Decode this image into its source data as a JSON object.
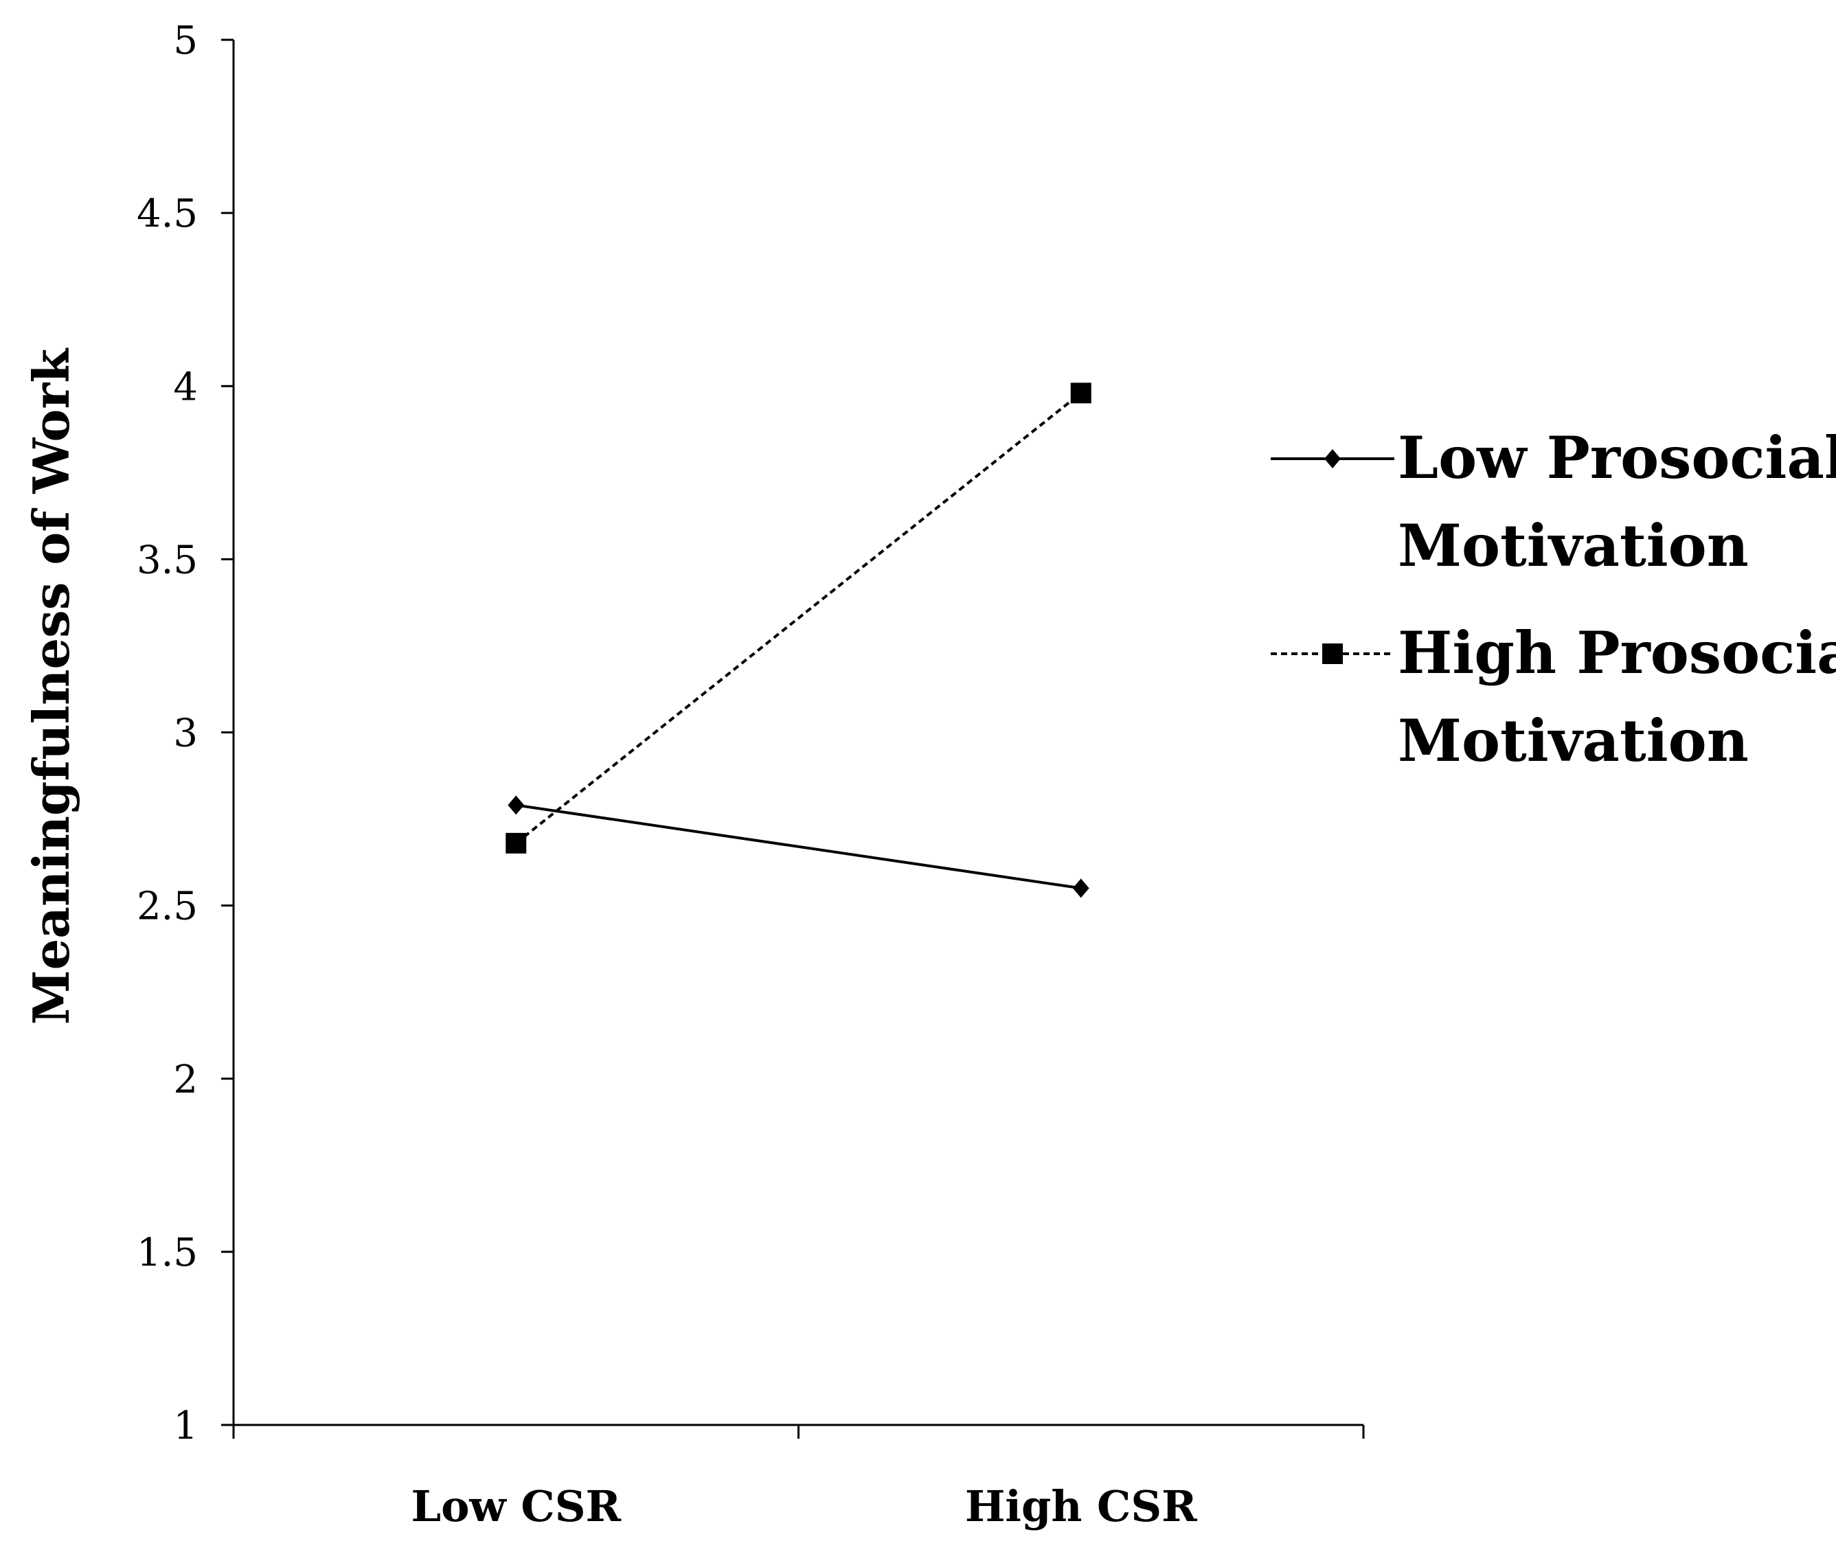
{
  "chart_data": {
    "type": "line",
    "title": "",
    "xlabel": "",
    "ylabel": "Meaningfulness  of Work",
    "categories": [
      "Low CSR",
      "High CSR"
    ],
    "ylim": [
      1,
      5
    ],
    "yticks": [
      "1",
      "1.5",
      "2",
      "2.5",
      "3",
      "3.5",
      "4",
      "4.5",
      "5"
    ],
    "grid": false,
    "legend_position": "right",
    "series": [
      {
        "name": "Low Prosocial Motivation",
        "legend_lines": [
          "Low Prosocial",
          "Motivation"
        ],
        "values": [
          2.79,
          2.55
        ],
        "line_style": "solid",
        "marker": "diamond",
        "color": "#000000"
      },
      {
        "name": "High Prosocial Motivation",
        "legend_lines": [
          "High Prosocial",
          "Motivation"
        ],
        "values": [
          2.68,
          3.98
        ],
        "line_style": "dashed",
        "marker": "square",
        "color": "#000000"
      }
    ]
  }
}
